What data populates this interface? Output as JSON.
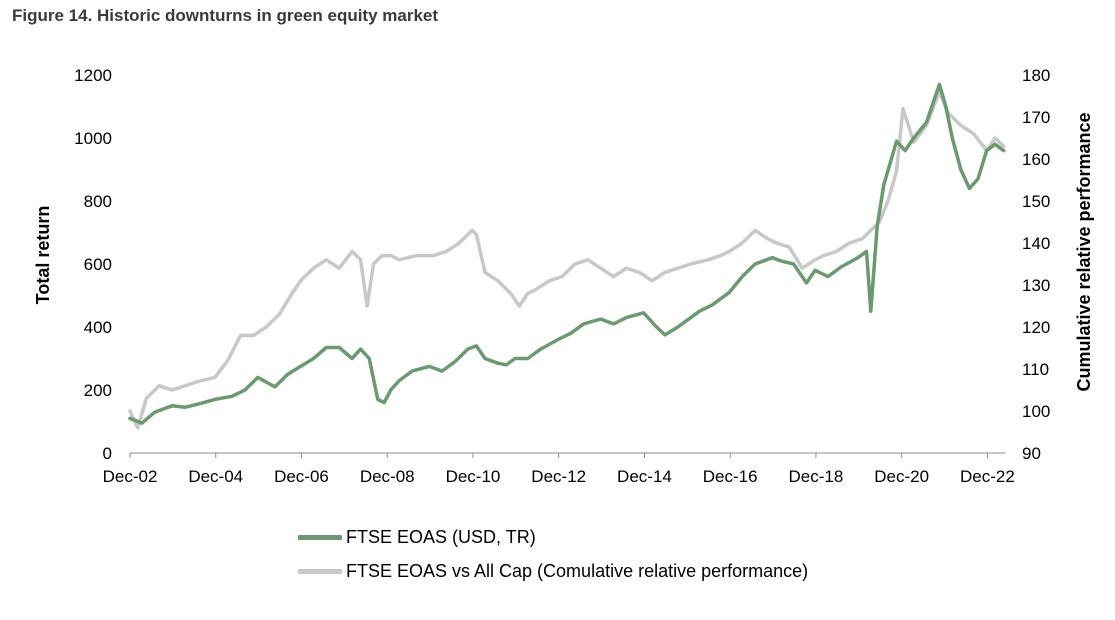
{
  "figure_title": "Figure 14. Historic downturns in green equity market",
  "colors": {
    "green": "#6b9a70",
    "gray": "#c8c8c8",
    "axis": "#8c8c8c"
  },
  "chart_data": {
    "type": "line",
    "title": "Figure 14. Historic downturns in green equity market",
    "xlabel": "",
    "ylabel": "Total return",
    "y2label": "Cumulative relative performance",
    "xlim": [
      2002.92,
      2023.33
    ],
    "ylim": [
      0,
      1200
    ],
    "y2lim": [
      90,
      180
    ],
    "yticks": [
      "0",
      "200",
      "400",
      "600",
      "800",
      "1000",
      "1200"
    ],
    "y2ticks": [
      "90",
      "100",
      "110",
      "120",
      "130",
      "140",
      "150",
      "160",
      "170",
      "180"
    ],
    "xticks": [
      {
        "label": "Dec-02",
        "x": 2002.92
      },
      {
        "label": "Dec-04",
        "x": 2004.92
      },
      {
        "label": "Dec-06",
        "x": 2006.92
      },
      {
        "label": "Dec-08",
        "x": 2008.92
      },
      {
        "label": "Dec-10",
        "x": 2010.92
      },
      {
        "label": "Dec-12",
        "x": 2012.92
      },
      {
        "label": "Dec-14",
        "x": 2014.92
      },
      {
        "label": "Dec-16",
        "x": 2016.92
      },
      {
        "label": "Dec-18",
        "x": 2018.92
      },
      {
        "label": "Dec-20",
        "x": 2020.92
      },
      {
        "label": "Dec-22",
        "x": 2022.92
      }
    ],
    "grid": false,
    "legend_position": "bottom",
    "series": [
      {
        "name": "FTSE EOAS (USD, TR)",
        "axis": "left",
        "x": [
          2002.92,
          2003.2,
          2003.5,
          2003.9,
          2004.2,
          2004.5,
          2004.9,
          2005.3,
          2005.6,
          2005.9,
          2006.3,
          2006.6,
          2006.9,
          2007.2,
          2007.5,
          2007.8,
          2008.1,
          2008.3,
          2008.5,
          2008.7,
          2008.85,
          2009.0,
          2009.2,
          2009.5,
          2009.9,
          2010.2,
          2010.5,
          2010.8,
          2011.0,
          2011.2,
          2011.5,
          2011.7,
          2011.9,
          2012.2,
          2012.5,
          2012.9,
          2013.2,
          2013.5,
          2013.9,
          2014.2,
          2014.5,
          2014.9,
          2015.2,
          2015.4,
          2015.7,
          2015.9,
          2016.2,
          2016.5,
          2016.9,
          2017.2,
          2017.5,
          2017.9,
          2018.1,
          2018.4,
          2018.7,
          2018.9,
          2019.2,
          2019.5,
          2019.9,
          2020.1,
          2020.2,
          2020.35,
          2020.5,
          2020.8,
          2021.0,
          2021.2,
          2021.5,
          2021.8,
          2021.95,
          2022.1,
          2022.3,
          2022.5,
          2022.7,
          2022.9,
          2023.1,
          2023.3
        ],
        "values": [
          110,
          95,
          130,
          150,
          145,
          155,
          170,
          180,
          200,
          240,
          210,
          250,
          275,
          300,
          335,
          335,
          300,
          330,
          300,
          170,
          160,
          200,
          230,
          260,
          275,
          260,
          290,
          330,
          340,
          300,
          285,
          280,
          300,
          300,
          330,
          360,
          380,
          410,
          425,
          410,
          430,
          445,
          400,
          375,
          400,
          420,
          450,
          470,
          510,
          560,
          600,
          620,
          610,
          600,
          540,
          580,
          560,
          590,
          620,
          640,
          450,
          720,
          850,
          990,
          960,
          1000,
          1050,
          1170,
          1100,
          1000,
          900,
          840,
          870,
          960,
          980,
          960
        ]
      },
      {
        "name": "FTSE EOAS vs All Cap (Comulative relative performance)",
        "axis": "right",
        "x": [
          2002.92,
          2003.1,
          2003.3,
          2003.6,
          2003.9,
          2004.2,
          2004.5,
          2004.9,
          2005.2,
          2005.5,
          2005.8,
          2006.1,
          2006.4,
          2006.7,
          2006.9,
          2007.2,
          2007.5,
          2007.8,
          2008.1,
          2008.3,
          2008.45,
          2008.6,
          2008.8,
          2009.0,
          2009.2,
          2009.6,
          2010.0,
          2010.3,
          2010.6,
          2010.9,
          2011.0,
          2011.2,
          2011.5,
          2011.8,
          2012.0,
          2012.2,
          2012.4,
          2012.7,
          2013.0,
          2013.3,
          2013.6,
          2013.9,
          2014.2,
          2014.5,
          2014.8,
          2015.1,
          2015.4,
          2015.7,
          2016.0,
          2016.4,
          2016.7,
          2016.9,
          2017.2,
          2017.5,
          2017.8,
          2018.0,
          2018.3,
          2018.6,
          2018.9,
          2019.1,
          2019.4,
          2019.7,
          2020.0,
          2020.2,
          2020.4,
          2020.6,
          2020.8,
          2020.95,
          2021.2,
          2021.5,
          2021.8,
          2022.0,
          2022.3,
          2022.6,
          2022.9,
          2023.1,
          2023.3
        ],
        "values": [
          100,
          96,
          103,
          106,
          105,
          106,
          107,
          108,
          112,
          118,
          118,
          120,
          123,
          128,
          131,
          134,
          136,
          134,
          138,
          136,
          125,
          135,
          137,
          137,
          136,
          137,
          137,
          138,
          140,
          143,
          142,
          133,
          131,
          128,
          125,
          128,
          129,
          131,
          132,
          135,
          136,
          134,
          132,
          134,
          133,
          131,
          133,
          134,
          135,
          136,
          137,
          138,
          140,
          143,
          141,
          140,
          139,
          134,
          136,
          137,
          138,
          140,
          141,
          143,
          145,
          150,
          157,
          172,
          164,
          168,
          176,
          171,
          168,
          166,
          162,
          165,
          163
        ]
      }
    ]
  }
}
